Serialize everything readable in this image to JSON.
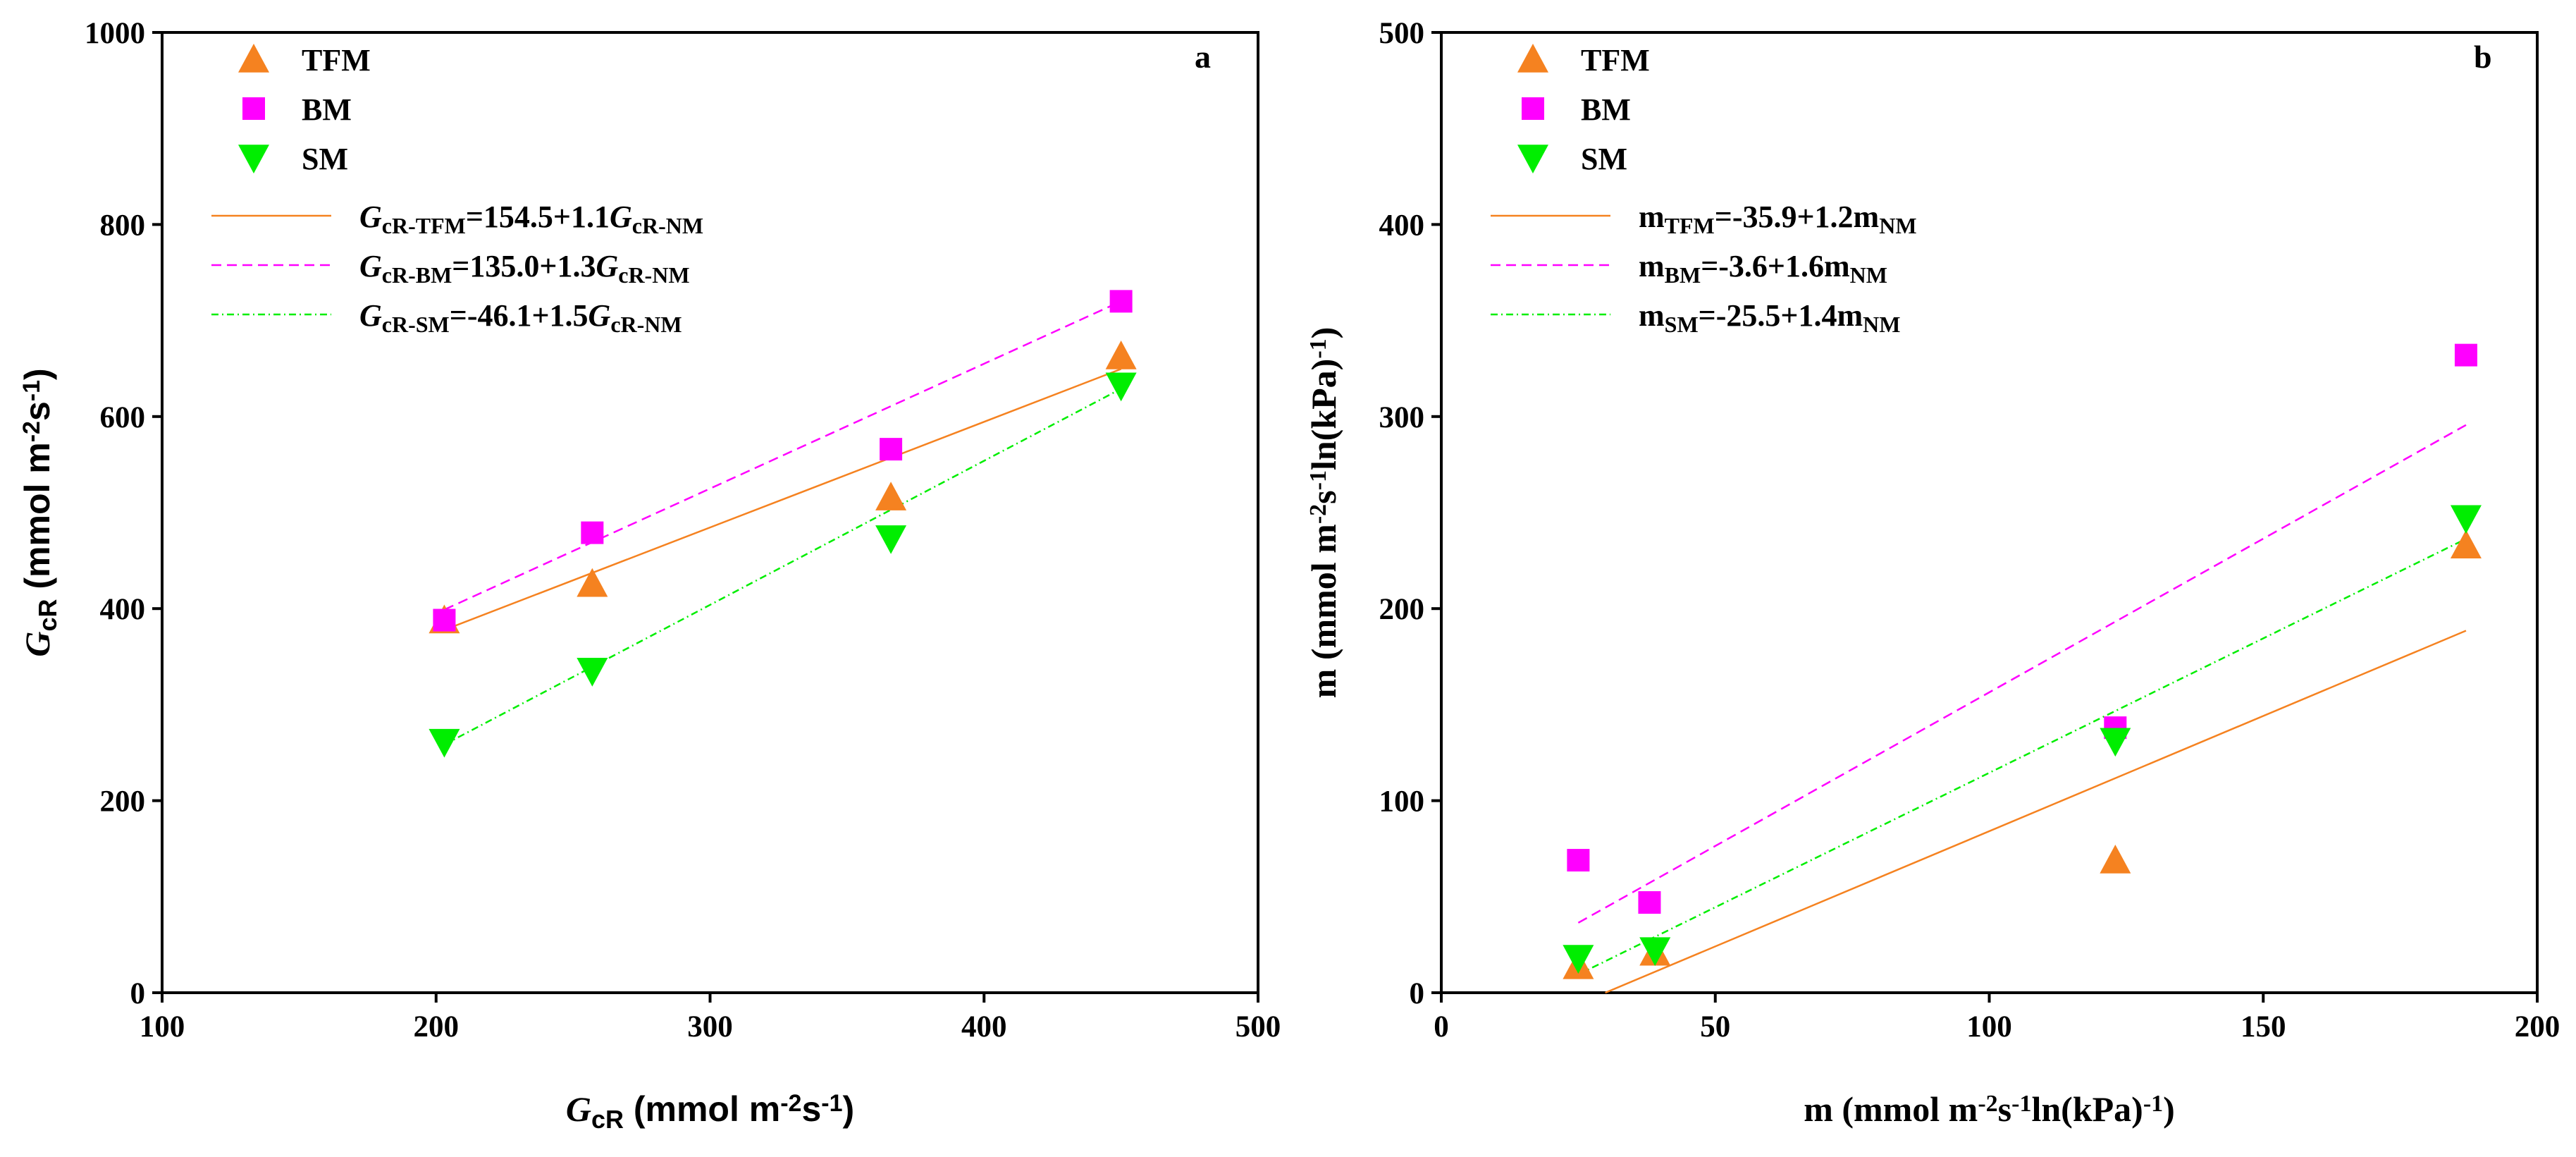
{
  "colors": {
    "TFM": "#f58220",
    "BM": "#ff00ff",
    "SM": "#00ee00",
    "axis": "#000000"
  },
  "chart_data": [
    {
      "type": "scatter",
      "panel_label": "a",
      "xlabel": {
        "sym": "G",
        "sub": "cR",
        "unit": " (mmol m",
        "sup1": "-2",
        "mid": "s",
        "sup2": "-1",
        "end": ")"
      },
      "ylabel": {
        "sym": "G",
        "sub": "cR",
        "unit": " (mmol m",
        "sup1": "-2",
        "mid": "s",
        "sup2": "-1",
        "end": ")"
      },
      "xlim": [
        100,
        500
      ],
      "ylim": [
        0,
        1000
      ],
      "xticks": [
        "100",
        "200",
        "300",
        "400",
        "500"
      ],
      "yticks": [
        "0",
        "200",
        "400",
        "600",
        "800",
        "1000"
      ],
      "legend_position": "top-left",
      "series": [
        {
          "name": "TFM",
          "marker": "triangle-up",
          "x": [
            203,
            257,
            366,
            450
          ],
          "y": [
            388,
            426,
            516,
            663
          ],
          "fit": {
            "intercept": 154.5,
            "slope": 1.1,
            "x_range": [
              203,
              450
            ],
            "style": "solid",
            "label": {
              "sym": "G",
              "sub": "cR-TFM",
              "eq": "=154.5+1.1",
              "sym2": "G",
              "sub2": "cR-NM"
            }
          }
        },
        {
          "name": "BM",
          "marker": "square",
          "x": [
            203,
            257,
            366,
            450
          ],
          "y": [
            388,
            479,
            566,
            720
          ],
          "fit": {
            "intercept": 135.0,
            "slope": 1.3,
            "x_range": [
              203,
              450
            ],
            "style": "dashed",
            "label": {
              "sym": "G",
              "sub": "cR-BM",
              "eq": "=135.0+1.3",
              "sym2": "G",
              "sub2": "cR-NM"
            }
          }
        },
        {
          "name": "SM",
          "marker": "triangle-down",
          "x": [
            203,
            257,
            366,
            450
          ],
          "y": [
            261,
            335,
            473,
            632
          ],
          "fit": {
            "intercept": -46.1,
            "slope": 1.5,
            "x_range": [
              203,
              450
            ],
            "style": "dashdot",
            "label": {
              "sym": "G",
              "sub": "cR-SM",
              "eq": "=-46.1+1.5",
              "sym2": "G",
              "sub2": "cR-NM"
            }
          }
        }
      ]
    },
    {
      "type": "scatter",
      "panel_label": "b",
      "xlabel": {
        "sym": "m",
        "sub": "",
        "unit": " (mmol m",
        "sup1": "-2",
        "mid": "s",
        "sup2": "-1",
        "end": "ln(kPa)",
        "sup3": "-1",
        "close": ")"
      },
      "ylabel": {
        "sym": "m",
        "sub": "",
        "unit": " (mmol m",
        "sup1": "-2",
        "mid": "s",
        "sup2": "-1",
        "end": "ln(kPa)",
        "sup3": "-1",
        "close": ")"
      },
      "xlim": [
        0,
        200
      ],
      "ylim": [
        0,
        500
      ],
      "xticks": [
        "0",
        "50",
        "100",
        "150",
        "200"
      ],
      "yticks": [
        "0",
        "100",
        "200",
        "300",
        "400",
        "500"
      ],
      "legend_position": "top-left",
      "series": [
        {
          "name": "TFM",
          "marker": "triangle-up",
          "x": [
            25,
            39,
            123,
            187
          ],
          "y": [
            14,
            21,
            69,
            233
          ],
          "fit": {
            "intercept": -35.9,
            "slope": 1.2,
            "x_range": [
              25,
              187
            ],
            "style": "solid",
            "label": {
              "sym": "m",
              "sub": "TFM",
              "eq": "=-35.9+1.2m",
              "sub2": "NM"
            }
          }
        },
        {
          "name": "BM",
          "marker": "square",
          "x": [
            25,
            38,
            123,
            187
          ],
          "y": [
            69,
            47,
            138,
            332
          ],
          "fit": {
            "intercept": -3.6,
            "slope": 1.6,
            "x_range": [
              25,
              187
            ],
            "style": "dashed",
            "label": {
              "sym": "m",
              "sub": "BM",
              "eq": "=-3.6+1.6m",
              "sub2": "NM"
            }
          }
        },
        {
          "name": "SM",
          "marker": "triangle-down",
          "x": [
            25,
            39,
            123,
            187
          ],
          "y": [
            18,
            22,
            131,
            247
          ],
          "fit": {
            "intercept": -25.5,
            "slope": 1.4,
            "x_range": [
              25,
              187
            ],
            "style": "dashdot",
            "label": {
              "sym": "m",
              "sub": "SM",
              "eq": "=-25.5+1.4m",
              "sub2": "NM"
            }
          }
        }
      ]
    }
  ]
}
